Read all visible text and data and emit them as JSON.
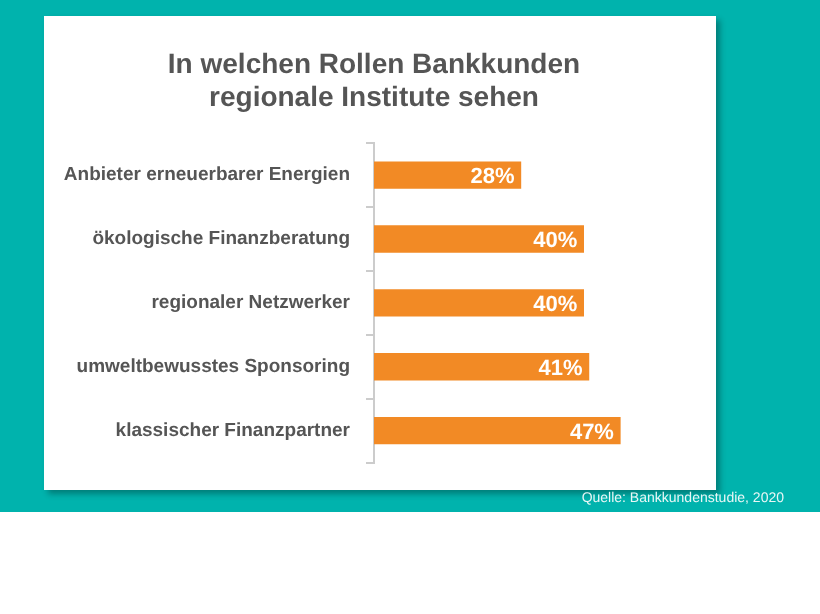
{
  "chart_data": {
    "type": "bar",
    "orientation": "horizontal",
    "title": "In welchen Rollen Bankkunden regionale Institute sehen",
    "categories": [
      "Anbieter erneuerbarer Energien",
      "ökologische Finanzberatung",
      "regionaler Netzwerker",
      "umweltbewusstes Sponsoring",
      "klassischer Finanzpartner"
    ],
    "values": [
      28,
      40,
      40,
      41,
      47
    ],
    "value_labels": [
      "28%",
      "40%",
      "40%",
      "41%",
      "47%"
    ],
    "color": "#f28a25",
    "annotations": [
      "Quelle: Bankkundenstudie, 2020"
    ],
    "legend": false
  }
}
